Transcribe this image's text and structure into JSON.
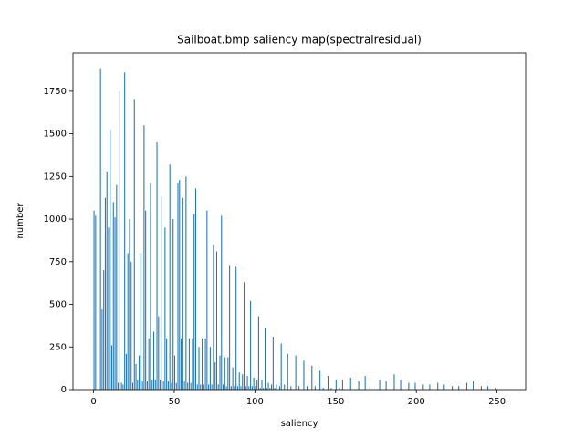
{
  "chart_data": {
    "type": "histogram",
    "title": "Sailboat.bmp saliency map(spectralresidual)",
    "xlabel": "saliency",
    "ylabel": "number",
    "color": "#1f77b4",
    "bins": [
      0,
      1,
      2,
      3,
      4,
      5,
      6,
      7,
      8,
      9,
      10,
      11,
      12,
      13,
      14,
      15,
      16,
      17,
      18,
      19,
      20,
      21,
      22,
      23,
      24,
      25,
      26,
      27,
      28,
      29,
      30,
      31,
      32,
      33,
      34,
      35,
      36,
      37,
      38,
      39,
      40,
      41,
      42,
      43,
      44,
      45,
      46,
      47,
      48,
      49,
      50,
      51,
      52,
      53,
      54,
      55,
      56,
      57,
      58,
      59,
      60,
      61,
      62,
      63,
      64,
      65,
      66,
      67,
      68,
      69,
      70,
      71,
      72,
      73,
      74,
      75,
      76,
      77,
      78,
      79,
      80,
      81,
      82,
      83,
      84,
      85,
      86,
      87,
      88,
      89,
      90,
      91,
      92,
      93,
      94,
      95,
      96,
      97,
      98,
      99,
      100,
      101,
      102,
      103,
      104,
      105,
      106,
      107,
      108,
      109,
      110,
      111,
      112,
      113,
      114,
      115,
      116,
      117,
      118,
      119,
      120,
      121,
      122,
      123,
      124,
      125,
      126,
      127,
      128,
      129,
      130,
      131,
      132,
      133,
      134,
      135,
      136,
      137,
      138,
      139,
      140,
      141,
      142,
      143,
      144,
      145,
      146,
      147,
      148,
      149,
      150,
      151,
      152,
      153,
      154,
      155,
      156,
      157,
      158,
      159,
      160,
      161,
      162,
      163,
      164,
      165,
      166,
      167,
      168,
      169,
      170,
      171,
      172,
      173,
      174,
      175,
      176,
      177,
      178,
      179,
      180,
      181,
      182,
      183,
      184,
      185,
      186,
      187,
      188,
      189,
      190,
      191,
      192,
      193,
      194,
      195,
      196,
      197,
      198,
      199,
      200,
      201,
      202,
      203,
      204,
      205,
      206,
      207,
      208,
      209,
      210,
      211,
      212,
      213,
      214,
      215,
      216,
      217,
      218,
      219,
      220,
      221,
      222,
      223,
      224,
      225,
      226,
      227,
      228,
      229,
      230,
      231,
      232,
      233,
      234,
      235,
      236,
      237,
      238,
      239,
      240,
      241,
      242,
      243,
      244,
      245,
      246,
      247,
      248,
      249,
      250,
      251,
      252,
      253,
      254,
      255
    ],
    "values": [
      1050,
      1020,
      0,
      0,
      1880,
      470,
      700,
      1125,
      1280,
      950,
      1520,
      260,
      1100,
      1010,
      1200,
      40,
      1750,
      40,
      30,
      1860,
      210,
      800,
      1000,
      750,
      40,
      1700,
      150,
      60,
      200,
      800,
      50,
      1550,
      1050,
      50,
      300,
      1210,
      60,
      340,
      60,
      1450,
      430,
      60,
      1130,
      50,
      950,
      300,
      50,
      1320,
      40,
      1000,
      200,
      40,
      1210,
      1230,
      300,
      1125,
      50,
      1250,
      40,
      300,
      40,
      300,
      1030,
      1180,
      30,
      250,
      30,
      300,
      30,
      300,
      1050,
      30,
      250,
      30,
      850,
      160,
      810,
      30,
      200,
      1020,
      30,
      190,
      20,
      190,
      730,
      20,
      130,
      20,
      720,
      20,
      100,
      20,
      90,
      630,
      20,
      80,
      20,
      520,
      20,
      70,
      20,
      60,
      430,
      10,
      60,
      10,
      360,
      10,
      40,
      10,
      30,
      310,
      10,
      30,
      0,
      20,
      270,
      0,
      30,
      0,
      210,
      0,
      20,
      0,
      0,
      200,
      0,
      20,
      0,
      0,
      170,
      0,
      20,
      0,
      0,
      140,
      0,
      20,
      0,
      0,
      110,
      0,
      10,
      0,
      0,
      80,
      0,
      10,
      0,
      0,
      60,
      0,
      10,
      0,
      60,
      0,
      0,
      0,
      0,
      70,
      0,
      0,
      0,
      0,
      50,
      0,
      0,
      0,
      80,
      0,
      0,
      60,
      0,
      0,
      0,
      0,
      0,
      60,
      0,
      0,
      0,
      50,
      0,
      0,
      0,
      0,
      90,
      0,
      0,
      0,
      60,
      0,
      0,
      0,
      0,
      40,
      0,
      0,
      0,
      40,
      0,
      0,
      0,
      0,
      30,
      0,
      0,
      0,
      30,
      0,
      0,
      0,
      0,
      40,
      0,
      0,
      0,
      30,
      0,
      0,
      0,
      0,
      20,
      0,
      0,
      0,
      20,
      0,
      0,
      0,
      0,
      40,
      0,
      0,
      0,
      50,
      0,
      0,
      0,
      0,
      20,
      0,
      0,
      0,
      20,
      0,
      0,
      0,
      0,
      10,
      0,
      0,
      0,
      0,
      0
    ],
    "xlim": [
      -12.75,
      267.75
    ],
    "xticks": [
      0,
      50,
      100,
      150,
      200,
      250
    ],
    "ylim": [
      0,
      1974
    ],
    "yticks": [
      0,
      250,
      500,
      750,
      1000,
      1250,
      1500,
      1750
    ]
  }
}
